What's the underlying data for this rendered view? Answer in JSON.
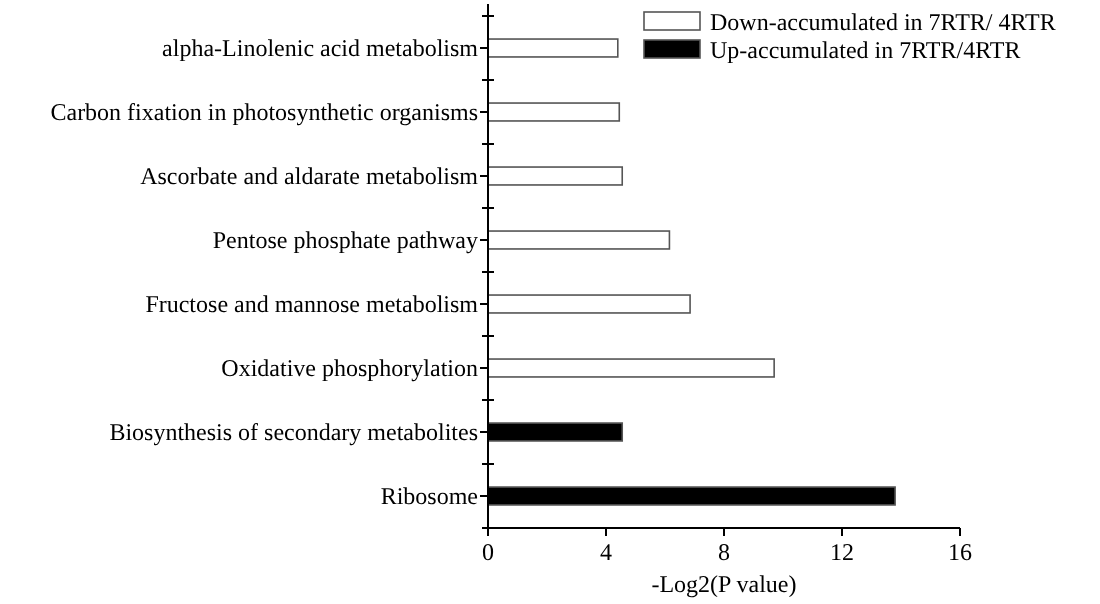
{
  "chart_data": {
    "type": "bar",
    "orientation": "horizontal",
    "xlabel": "-Log2(P value)",
    "categories": [
      "alpha-Linolenic acid metabolism",
      "Carbon fixation in photosynthetic organisms",
      "Ascorbate and aldarate metabolism",
      "Pentose phosphate pathway",
      "Fructose and mannose metabolism",
      "Oxidative phosphorylation",
      "Biosynthesis of secondary metabolites",
      "Ribosome"
    ],
    "series": [
      {
        "name": "Down-accumulated in 7RTR/ 4RTR",
        "color": "#ffffff",
        "values": [
          4.4,
          4.45,
          4.55,
          6.15,
          6.85,
          9.7,
          null,
          null
        ]
      },
      {
        "name": "Up-accumulated in 7RTR/4RTR",
        "color": "#000000",
        "values": [
          null,
          null,
          null,
          null,
          null,
          null,
          4.55,
          13.8
        ]
      }
    ],
    "xlim": [
      0,
      16
    ],
    "xticks": [
      0,
      4,
      8,
      12,
      16
    ],
    "legend": "top right",
    "grid": false
  }
}
